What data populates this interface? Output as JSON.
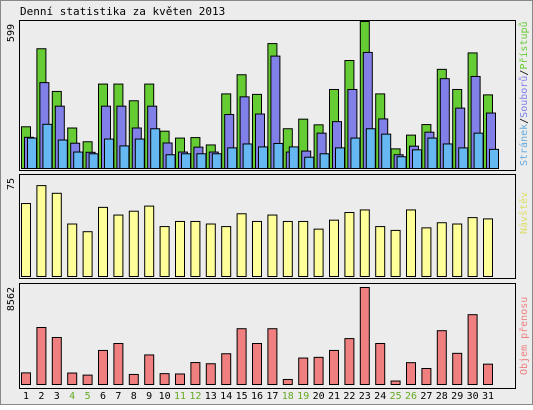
{
  "title": "Denní statistika za květen 2013",
  "colors": {
    "background": "#ececec",
    "frame": "#000000",
    "hits": "#66cc33",
    "files": "#8080e8",
    "pages": "#66b8f2",
    "visits": "#ffff99",
    "kbytes": "#f08080",
    "weekend_label": "#66aa22",
    "weekday_label": "#000000",
    "legend_pages": "#66aadd",
    "legend_files": "#8080e8",
    "legend_hits": "#66cc33",
    "legend_visits": "#dddd66",
    "legend_kbytes": "#ee8080"
  },
  "chart_data": [
    {
      "type": "bar",
      "name": "hits-files-pages",
      "ymax_label": "599",
      "ylim": [
        0,
        599
      ],
      "legend": {
        "placement": "right-vertical",
        "entries": [
          "Stránek",
          "Souborů",
          "Přístupů"
        ],
        "separator": "/"
      },
      "categories": [
        "1",
        "2",
        "3",
        "4",
        "5",
        "6",
        "7",
        "8",
        "9",
        "10",
        "11",
        "12",
        "13",
        "14",
        "15",
        "16",
        "17",
        "18",
        "19",
        "20",
        "21",
        "22",
        "23",
        "24",
        "25",
        "26",
        "27",
        "28",
        "29",
        "30",
        "31"
      ],
      "weekend": [
        "4",
        "5",
        "11",
        "12",
        "18",
        "19",
        "25",
        "26"
      ],
      "series": [
        {
          "name": "Přístupů",
          "values": [
            170,
            488,
            314,
            165,
            109,
            344,
            344,
            276,
            344,
            152,
            124,
            126,
            96,
            304,
            382,
            302,
            509,
            162,
            201,
            178,
            322,
            440,
            599,
            304,
            80,
            136,
            179,
            404,
            322,
            471,
            300
          ]
        },
        {
          "name": "Souborů",
          "values": [
            127,
            350,
            254,
            103,
            66,
            254,
            254,
            165,
            254,
            104,
            67,
            87,
            67,
            220,
            292,
            222,
            458,
            67,
            71,
            144,
            191,
            322,
            473,
            202,
            56,
            91,
            148,
            366,
            246,
            375,
            226
          ]
        },
        {
          "name": "Stránek",
          "values": [
            124,
            180,
            116,
            67,
            60,
            120,
            92,
            120,
            162,
            56,
            60,
            60,
            60,
            84,
            100,
            88,
            102,
            88,
            46,
            60,
            84,
            124,
            162,
            140,
            48,
            76,
            124,
            100,
            84,
            144,
            78
          ]
        }
      ]
    },
    {
      "type": "bar",
      "name": "visits",
      "ymax_label": "75",
      "ylim": [
        0,
        75
      ],
      "legend": {
        "placement": "right-vertical",
        "entries": [
          "Návštěv"
        ]
      },
      "categories": [
        "1",
        "2",
        "3",
        "4",
        "5",
        "6",
        "7",
        "8",
        "9",
        "10",
        "11",
        "12",
        "13",
        "14",
        "15",
        "16",
        "17",
        "18",
        "19",
        "20",
        "21",
        "22",
        "23",
        "24",
        "25",
        "26",
        "27",
        "28",
        "29",
        "30",
        "31"
      ],
      "series": [
        {
          "name": "Návštěv",
          "values": [
            57,
            71,
            65,
            41,
            35,
            54,
            48,
            51,
            55,
            39,
            43,
            43,
            41,
            39,
            49,
            43,
            48,
            43,
            43,
            37,
            44,
            50,
            52,
            39,
            36,
            52,
            38,
            42,
            41,
            46,
            45
          ]
        }
      ]
    },
    {
      "type": "bar",
      "name": "kbytes",
      "ymax_label": "8562",
      "ylim": [
        0,
        8562
      ],
      "legend": {
        "placement": "right-vertical",
        "entries": [
          "Objem přenosu"
        ]
      },
      "categories": [
        "1",
        "2",
        "3",
        "4",
        "5",
        "6",
        "7",
        "8",
        "9",
        "10",
        "11",
        "12",
        "13",
        "14",
        "15",
        "16",
        "17",
        "18",
        "19",
        "20",
        "21",
        "22",
        "23",
        "24",
        "25",
        "26",
        "27",
        "28",
        "29",
        "30",
        "31"
      ],
      "series": [
        {
          "name": "Objem přenosu",
          "values": [
            1026,
            5031,
            4150,
            1011,
            828,
            3006,
            3619,
            887,
            2609,
            957,
            929,
            1937,
            1832,
            2715,
            4925,
            3619,
            4925,
            444,
            2334,
            2397,
            3006,
            4052,
            8562,
            3619,
            307,
            1926,
            1412,
            4750,
            2750,
            6162,
            1795
          ]
        }
      ]
    }
  ]
}
